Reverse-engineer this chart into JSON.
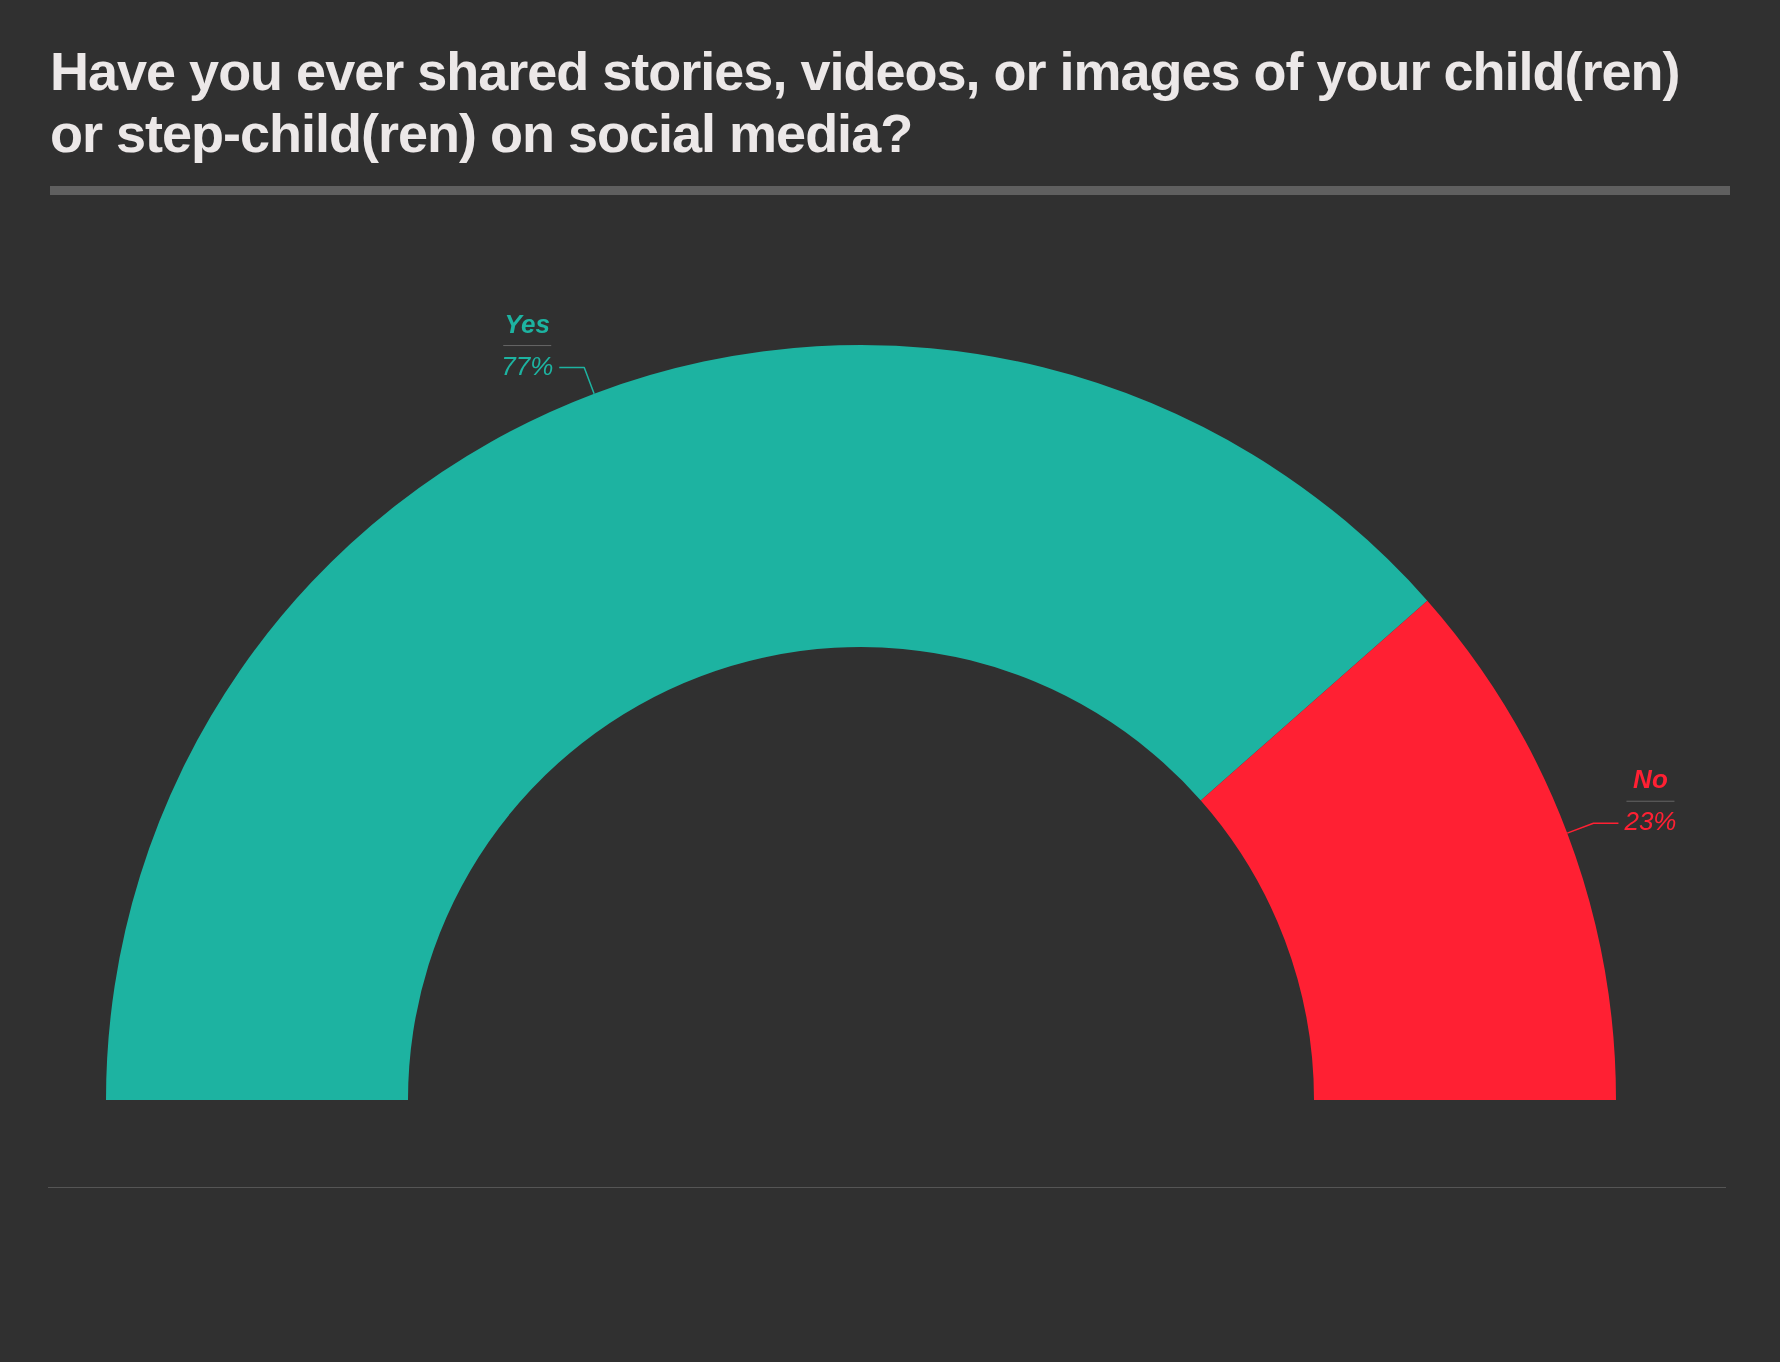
{
  "chart_data": {
    "type": "donut",
    "title": "Have you ever shared stories, videos, or images of your child(ren) or step-child(ren) on social media?",
    "categories": [
      "Yes",
      "No"
    ],
    "values": [
      77,
      23
    ],
    "value_labels": [
      "77%",
      "23%"
    ],
    "colors": [
      "#1db3a1",
      "#ff2033"
    ],
    "legend": false
  }
}
